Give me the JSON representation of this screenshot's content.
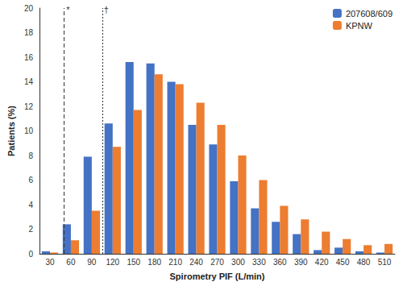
{
  "chart_data": {
    "type": "bar",
    "x_label": "Spirometry PIF (L/min)",
    "y_label": "Patients (%)",
    "categories": [
      30,
      60,
      90,
      120,
      150,
      180,
      210,
      240,
      270,
      300,
      330,
      360,
      390,
      420,
      450,
      480,
      510
    ],
    "series": [
      {
        "name": "207608/609",
        "color": "#4472c4",
        "values": [
          0.2,
          2.4,
          7.9,
          10.6,
          15.6,
          15.5,
          14.0,
          10.5,
          8.9,
          5.9,
          3.7,
          2.6,
          1.6,
          0.3,
          0.5,
          0.2,
          0.1
        ]
      },
      {
        "name": "KPNW",
        "color": "#ed7d31",
        "values": [
          0.1,
          1.1,
          3.5,
          8.7,
          11.7,
          14.6,
          13.8,
          12.3,
          10.5,
          8.0,
          6.0,
          3.9,
          2.8,
          1.8,
          1.2,
          0.7,
          0.8
        ]
      }
    ],
    "ylim": [
      0,
      20
    ],
    "yticks": [
      0,
      2,
      4,
      6,
      8,
      10,
      12,
      14,
      16,
      18,
      20
    ],
    "grid": false,
    "legend": "top-right",
    "reference_lines": [
      {
        "x": 50,
        "label": "*",
        "line_style": "dashed"
      },
      {
        "x": 105,
        "label": "†",
        "line_style": "dotted"
      }
    ]
  }
}
